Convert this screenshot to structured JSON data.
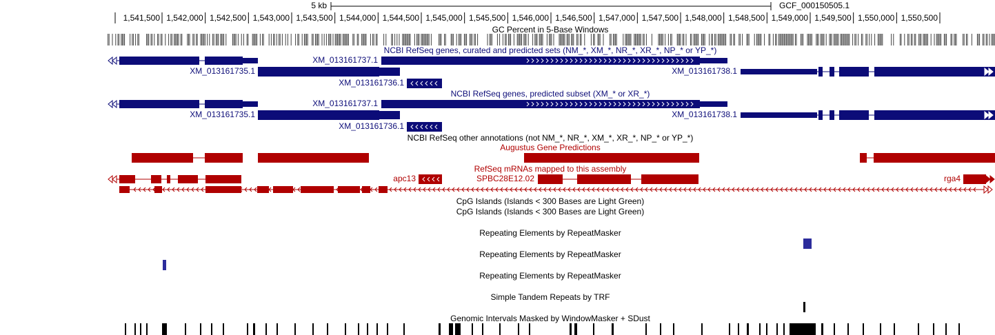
{
  "scale": {
    "label": "5 kb",
    "assembly": "GCF_000150505.1"
  },
  "ruler_ticks": [
    "1,541,500",
    "1,542,000",
    "1,542,500",
    "1,543,000",
    "1,543,500",
    "1,544,000",
    "1,544,500",
    "1,545,000",
    "1,545,500",
    "1,546,000",
    "1,546,500",
    "1,547,000",
    "1,547,500",
    "1,548,000",
    "1,548,500",
    "1,549,000",
    "1,549,500",
    "1,550,000",
    "1,550,500"
  ],
  "tracks": [
    {
      "title": "GC Percent in 5-Base Windows"
    },
    {
      "title": "NCBI RefSeq genes, curated and predicted sets (NM_*, XM_*, NR_*, XR_*, NP_* or YP_*)"
    },
    {
      "title": "NCBI RefSeq genes, predicted subset (XM_* or XR_*)"
    },
    {
      "title": "NCBI RefSeq other annotations (not NM_*, NR_*, XM_*, XR_*, NP_* or YP_*)"
    },
    {
      "title": "Augustus Gene Predictions"
    },
    {
      "title": "RefSeq mRNAs mapped to this assembly"
    },
    {
      "title": "CpG Islands (Islands < 300 Bases are Light Green)"
    },
    {
      "title": "CpG Islands (Islands < 300 Bases are Light Green)"
    },
    {
      "title": "Repeating Elements by RepeatMasker"
    },
    {
      "title": "Repeating Elements by RepeatMasker"
    },
    {
      "title": "Repeating Elements by RepeatMasker"
    },
    {
      "title": "Simple Tandem Repeats by TRF"
    },
    {
      "title": "Genomic Intervals Masked by WindowMasker + SDust"
    }
  ],
  "genes": {
    "curated": [
      "XM_013161737.1",
      "XM_013161735.1",
      "XM_013161736.1",
      "XM_013161738.1"
    ],
    "predicted": [
      "XM_013161737.1",
      "XM_013161735.1",
      "XM_013161736.1",
      "XM_013161738.1"
    ],
    "mrna": [
      "apc13",
      "SPBC28E12.02",
      "rga4"
    ]
  }
}
